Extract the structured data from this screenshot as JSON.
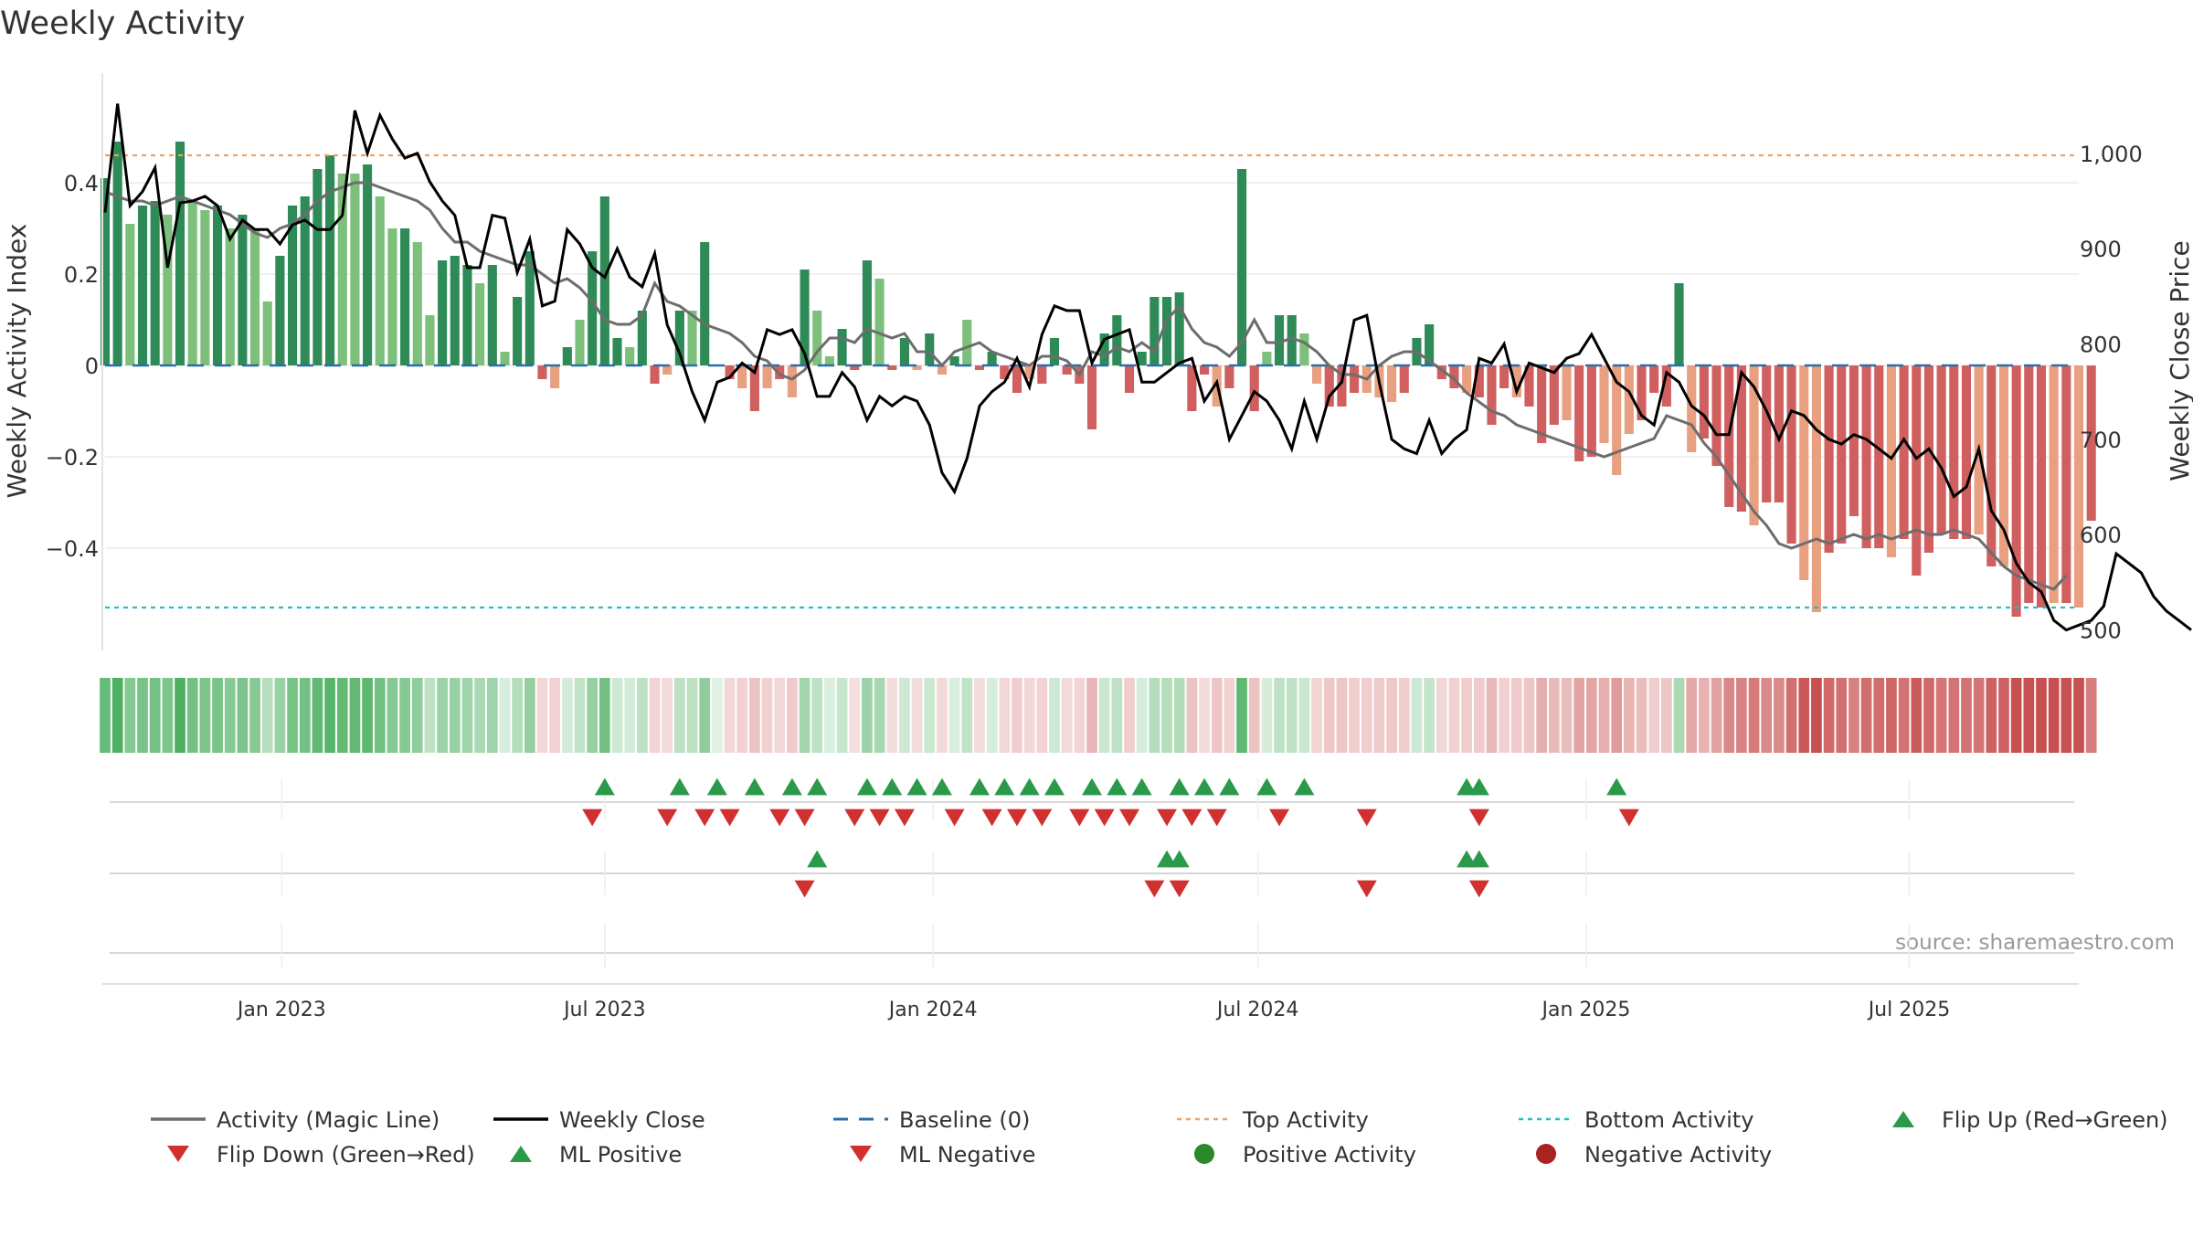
{
  "chart_data": {
    "type": "bar",
    "title": "Weekly Activity",
    "ylabel": "Weekly Activity Index",
    "y2label": "Weekly Close Price",
    "source": "source: sharemaestro.com",
    "ylim": [
      -0.6,
      0.6
    ],
    "y2lim": [
      490,
      1065
    ],
    "yticks": [
      0.4,
      0.2,
      0,
      -0.2,
      -0.4
    ],
    "ytick_labels": [
      "0.4",
      "0.2",
      "0",
      "−0.2",
      "−0.4"
    ],
    "y2ticks": [
      1000,
      900,
      800,
      700,
      600,
      500
    ],
    "y2tick_labels": [
      "1,000",
      "900",
      "800",
      "700",
      "600",
      "500"
    ],
    "top_activity": 0.46,
    "bottom_activity": -0.53,
    "x_start": "2022-09-24",
    "x_end": "2025-10-04",
    "xticks": [
      {
        "date": "2023-01-01",
        "label": "Jan 2023"
      },
      {
        "date": "2023-07-01",
        "label": "Jul 2023"
      },
      {
        "date": "2024-01-01",
        "label": "Jan 2024"
      },
      {
        "date": "2024-07-01",
        "label": "Jul 2024"
      },
      {
        "date": "2025-01-01",
        "label": "Jan 2025"
      },
      {
        "date": "2025-07-01",
        "label": "Jul 2025"
      }
    ],
    "first_week": "2022-09-24",
    "activity": [
      0.41,
      0.49,
      0.31,
      0.35,
      0.36,
      0.33,
      0.49,
      0.36,
      0.34,
      0.35,
      0.3,
      0.33,
      0.3,
      0.14,
      0.24,
      0.35,
      0.37,
      0.43,
      0.46,
      0.42,
      0.42,
      0.44,
      0.37,
      0.3,
      0.3,
      0.27,
      0.11,
      0.23,
      0.24,
      0.22,
      0.18,
      0.22,
      0.03,
      0.15,
      0.25,
      -0.03,
      -0.05,
      0.04,
      0.1,
      0.25,
      0.37,
      0.06,
      0.04,
      0.12,
      -0.04,
      -0.02,
      0.12,
      0.12,
      0.27,
      0.0,
      -0.03,
      -0.05,
      -0.1,
      -0.05,
      -0.03,
      -0.07,
      0.21,
      0.12,
      0.02,
      0.08,
      -0.01,
      0.23,
      0.19,
      -0.01,
      0.06,
      -0.01,
      0.07,
      -0.02,
      0.02,
      0.1,
      -0.01,
      0.03,
      -0.03,
      -0.06,
      -0.03,
      -0.04,
      0.06,
      -0.02,
      -0.04,
      -0.14,
      0.07,
      0.11,
      -0.06,
      0.03,
      0.15,
      0.15,
      0.16,
      -0.1,
      -0.02,
      -0.09,
      -0.05,
      0.43,
      -0.1,
      0.03,
      0.11,
      0.11,
      0.07,
      -0.04,
      -0.09,
      -0.09,
      -0.06,
      -0.06,
      -0.07,
      -0.08,
      -0.06,
      0.06,
      0.09,
      -0.03,
      -0.05,
      -0.06,
      -0.07,
      -0.13,
      -0.05,
      -0.07,
      -0.09,
      -0.17,
      -0.13,
      -0.12,
      -0.21,
      -0.2,
      -0.17,
      -0.24,
      -0.15,
      -0.12,
      -0.06,
      -0.09,
      0.18,
      -0.19,
      -0.16,
      -0.22,
      -0.31,
      -0.32,
      -0.35,
      -0.3,
      -0.3,
      -0.39,
      -0.47,
      -0.54,
      -0.41,
      -0.39,
      -0.33,
      -0.4,
      -0.4,
      -0.42,
      -0.38,
      -0.46,
      -0.41,
      -0.37,
      -0.38,
      -0.38,
      -0.37,
      -0.44,
      -0.44,
      -0.55,
      -0.52,
      -0.53,
      -0.52,
      -0.52,
      -0.53,
      -0.34
    ],
    "activity_shade": [
      2,
      2,
      1,
      2,
      2,
      1,
      2,
      1,
      1,
      2,
      1,
      2,
      1,
      1,
      2,
      2,
      2,
      2,
      2,
      1,
      1,
      2,
      1,
      1,
      2,
      1,
      1,
      2,
      2,
      2,
      1,
      2,
      1,
      2,
      2,
      2,
      1,
      2,
      1,
      2,
      2,
      2,
      1,
      2,
      2,
      1,
      2,
      1,
      2,
      2,
      2,
      1,
      2,
      1,
      2,
      1,
      2,
      1,
      1,
      2,
      2,
      2,
      1,
      2,
      2,
      1,
      2,
      1,
      2,
      1,
      2,
      2,
      2,
      2,
      1,
      2,
      2,
      2,
      2,
      2,
      2,
      2,
      2,
      2,
      2,
      2,
      2,
      2,
      2,
      1,
      2,
      2,
      2,
      1,
      2,
      2,
      1,
      1,
      2,
      2,
      2,
      1,
      1,
      1,
      2,
      2,
      2,
      2,
      2,
      1,
      2,
      2,
      2,
      1,
      2,
      2,
      2,
      1,
      2,
      2,
      1,
      1,
      1,
      2,
      2,
      2,
      2,
      1,
      2,
      2,
      2,
      2,
      1,
      2,
      2,
      2,
      1,
      1,
      2,
      2,
      2,
      2,
      2,
      1,
      2,
      2,
      2,
      2,
      2,
      2,
      1,
      2,
      1,
      2,
      2,
      2,
      1,
      2,
      1,
      2,
      2,
      2,
      2,
      1
    ],
    "close": [
      938,
      1052,
      945,
      960,
      985,
      880,
      948,
      950,
      955,
      945,
      910,
      930,
      920,
      920,
      905,
      925,
      930,
      920,
      920,
      935,
      1045,
      1000,
      1040,
      1015,
      995,
      1000,
      970,
      950,
      935,
      880,
      880,
      935,
      932,
      875,
      910,
      840,
      845,
      920,
      905,
      880,
      870,
      900,
      870,
      860,
      895,
      820,
      790,
      750,
      720,
      760,
      765,
      780,
      770,
      815,
      810,
      815,
      790,
      745,
      745,
      770,
      755,
      720,
      745,
      735,
      745,
      740,
      715,
      665,
      645,
      680,
      735,
      750,
      760,
      785,
      755,
      810,
      840,
      835,
      835,
      780,
      805,
      810,
      815,
      760,
      760,
      770,
      780,
      785,
      740,
      760,
      700,
      725,
      750,
      740,
      720,
      690,
      740,
      700,
      745,
      760,
      825,
      830,
      760,
      700,
      690,
      685,
      720,
      685,
      700,
      710,
      785,
      780,
      800,
      750,
      780,
      775,
      770,
      785,
      790,
      810,
      785,
      760,
      750,
      725,
      715,
      770,
      760,
      735,
      725,
      705,
      705,
      770,
      755,
      730,
      700,
      730,
      725,
      710,
      700,
      695,
      705,
      700,
      690,
      680,
      700,
      680,
      690,
      670,
      640,
      650,
      690,
      625,
      605,
      570,
      550,
      540,
      510,
      500,
      505,
      510,
      525,
      580,
      570,
      560,
      535,
      520,
      510,
      500
    ],
    "magic": [
      0.38,
      0.37,
      0.36,
      0.36,
      0.35,
      0.36,
      0.37,
      0.36,
      0.35,
      0.34,
      0.33,
      0.31,
      0.29,
      0.28,
      0.3,
      0.31,
      0.33,
      0.36,
      0.38,
      0.39,
      0.4,
      0.4,
      0.39,
      0.38,
      0.37,
      0.36,
      0.34,
      0.3,
      0.27,
      0.27,
      0.25,
      0.24,
      0.23,
      0.22,
      0.22,
      0.2,
      0.18,
      0.19,
      0.17,
      0.14,
      0.1,
      0.09,
      0.09,
      0.11,
      0.18,
      0.14,
      0.13,
      0.11,
      0.09,
      0.08,
      0.07,
      0.05,
      0.02,
      0.01,
      -0.02,
      -0.03,
      -0.01,
      0.03,
      0.06,
      0.06,
      0.05,
      0.08,
      0.07,
      0.06,
      0.07,
      0.03,
      0.03,
      0.0,
      0.03,
      0.04,
      0.05,
      0.03,
      0.02,
      0.01,
      0.0,
      0.02,
      0.02,
      0.01,
      -0.02,
      0.03,
      0.02,
      0.04,
      0.03,
      0.05,
      0.03,
      0.1,
      0.13,
      0.08,
      0.05,
      0.04,
      0.02,
      0.05,
      0.1,
      0.05,
      0.05,
      0.06,
      0.05,
      0.03,
      0.0,
      -0.02,
      -0.02,
      -0.03,
      0.0,
      0.02,
      0.03,
      0.03,
      0.01,
      -0.01,
      -0.03,
      -0.06,
      -0.08,
      -0.1,
      -0.11,
      -0.13,
      -0.14,
      -0.15,
      -0.16,
      -0.17,
      -0.18,
      -0.19,
      -0.2,
      -0.19,
      -0.18,
      -0.17,
      -0.16,
      -0.11,
      -0.12,
      -0.13,
      -0.17,
      -0.2,
      -0.24,
      -0.28,
      -0.32,
      -0.35,
      -0.39,
      -0.4,
      -0.39,
      -0.38,
      -0.39,
      -0.38,
      -0.37,
      -0.38,
      -0.37,
      -0.38,
      -0.37,
      -0.36,
      -0.37,
      -0.37,
      -0.36,
      -0.37,
      -0.38,
      -0.41,
      -0.44,
      -0.46,
      -0.47,
      -0.48,
      -0.49,
      -0.46
    ],
    "flip_up": [
      "2023-07-01",
      "2023-08-12",
      "2023-09-02",
      "2023-09-23",
      "2023-10-14",
      "2023-10-28",
      "2023-11-25",
      "2023-12-09",
      "2023-12-23",
      "2024-01-06",
      "2024-01-27",
      "2024-02-10",
      "2024-02-24",
      "2024-03-09",
      "2024-03-30",
      "2024-04-13",
      "2024-04-27",
      "2024-05-18",
      "2024-06-01",
      "2024-06-15",
      "2024-07-06",
      "2024-07-27",
      "2024-10-26",
      "2024-11-02",
      "2025-01-18"
    ],
    "flip_down": [
      "2023-06-24",
      "2023-08-05",
      "2023-08-26",
      "2023-09-09",
      "2023-10-07",
      "2023-10-21",
      "2023-11-18",
      "2023-12-02",
      "2023-12-16",
      "2024-01-13",
      "2024-02-03",
      "2024-02-17",
      "2024-03-02",
      "2024-03-23",
      "2024-04-06",
      "2024-04-20",
      "2024-05-11",
      "2024-05-25",
      "2024-06-08",
      "2024-07-13",
      "2024-08-31",
      "2024-11-02",
      "2025-01-25"
    ],
    "ml_positive": [
      "2023-10-28",
      "2024-05-11",
      "2024-05-18",
      "2024-10-26",
      "2024-11-02"
    ],
    "ml_negative": [
      "2023-10-21",
      "2024-05-04",
      "2024-05-18",
      "2024-08-31",
      "2024-11-02"
    ],
    "legend": [
      {
        "label": "Activity (Magic Line)",
        "kind": "line",
        "color": "#6d6d6d"
      },
      {
        "label": "Weekly Close",
        "kind": "line",
        "color": "#000000"
      },
      {
        "label": "Baseline (0)",
        "kind": "dash",
        "color": "#2a6fa8"
      },
      {
        "label": "Top Activity",
        "kind": "dot",
        "color": "#f0a060"
      },
      {
        "label": "Bottom Activity",
        "kind": "dot",
        "color": "#20c0c8"
      },
      {
        "label": "Flip Up (Red→Green)",
        "kind": "up",
        "color": "#2a9a4a"
      },
      {
        "label": "Flip Down (Green→Red)",
        "kind": "down",
        "color": "#d03030"
      },
      {
        "label": "ML Positive",
        "kind": "up",
        "color": "#2a9a4a"
      },
      {
        "label": "ML Negative",
        "kind": "down",
        "color": "#d03030"
      },
      {
        "label": "Positive Activity",
        "kind": "circle",
        "color": "#2a8a2a"
      },
      {
        "label": "Negative Activity",
        "kind": "circle",
        "color": "#aa2222"
      }
    ],
    "colors": {
      "pos_dark": "#2e8b57",
      "pos_light": "#7cc07c",
      "neg_dark": "#d06060",
      "neg_light": "#e8a080",
      "magic": "#6d6d6d",
      "close": "#000000",
      "baseline": "#2a6fa8",
      "top": "#f0a060",
      "bottom": "#20c0c8",
      "up": "#2a9a4a",
      "down": "#d03030"
    }
  }
}
